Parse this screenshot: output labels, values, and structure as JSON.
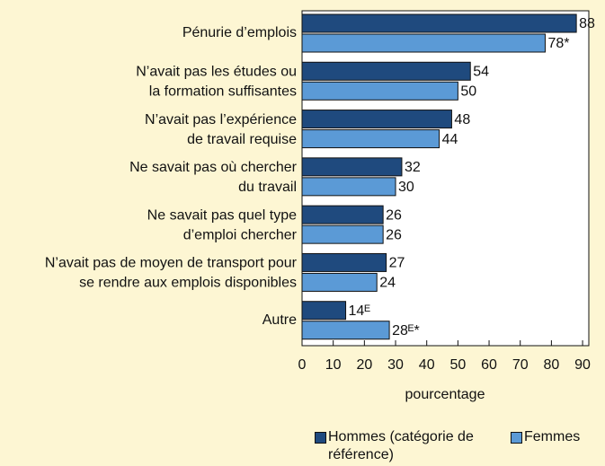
{
  "chart_data": {
    "type": "bar",
    "orientation": "horizontal",
    "categories": [
      [
        "Pénurie d’emplois"
      ],
      [
        "N’avait pas les études ou",
        "la formation suffisantes"
      ],
      [
        "N’avait pas l’expérience",
        "de travail requise"
      ],
      [
        "Ne savait pas où chercher",
        "du travail"
      ],
      [
        "Ne savait pas quel type",
        "d’emploi chercher"
      ],
      [
        "N’avait pas de moyen de transport pour",
        "se rendre aux emplois disponibles"
      ],
      [
        "Autre"
      ]
    ],
    "series": [
      {
        "name": "Hommes (catégorie de référence)",
        "color": "#1f4a7e",
        "values": [
          88,
          54,
          48,
          32,
          26,
          27,
          14
        ],
        "value_labels": [
          "88",
          "54",
          "48",
          "32",
          "26",
          "27",
          "14ᴱ"
        ]
      },
      {
        "name": "Femmes",
        "color": "#5b9ad6",
        "values": [
          78,
          50,
          44,
          30,
          26,
          24,
          28
        ],
        "value_labels": [
          "78*",
          "50",
          "44",
          "30",
          "26",
          "24",
          "28ᴱ*"
        ]
      }
    ],
    "xlabel": "pourcentage",
    "xlim": [
      0,
      92
    ],
    "xticks": [
      0,
      10,
      20,
      30,
      40,
      50,
      60,
      70,
      80,
      90
    ]
  }
}
